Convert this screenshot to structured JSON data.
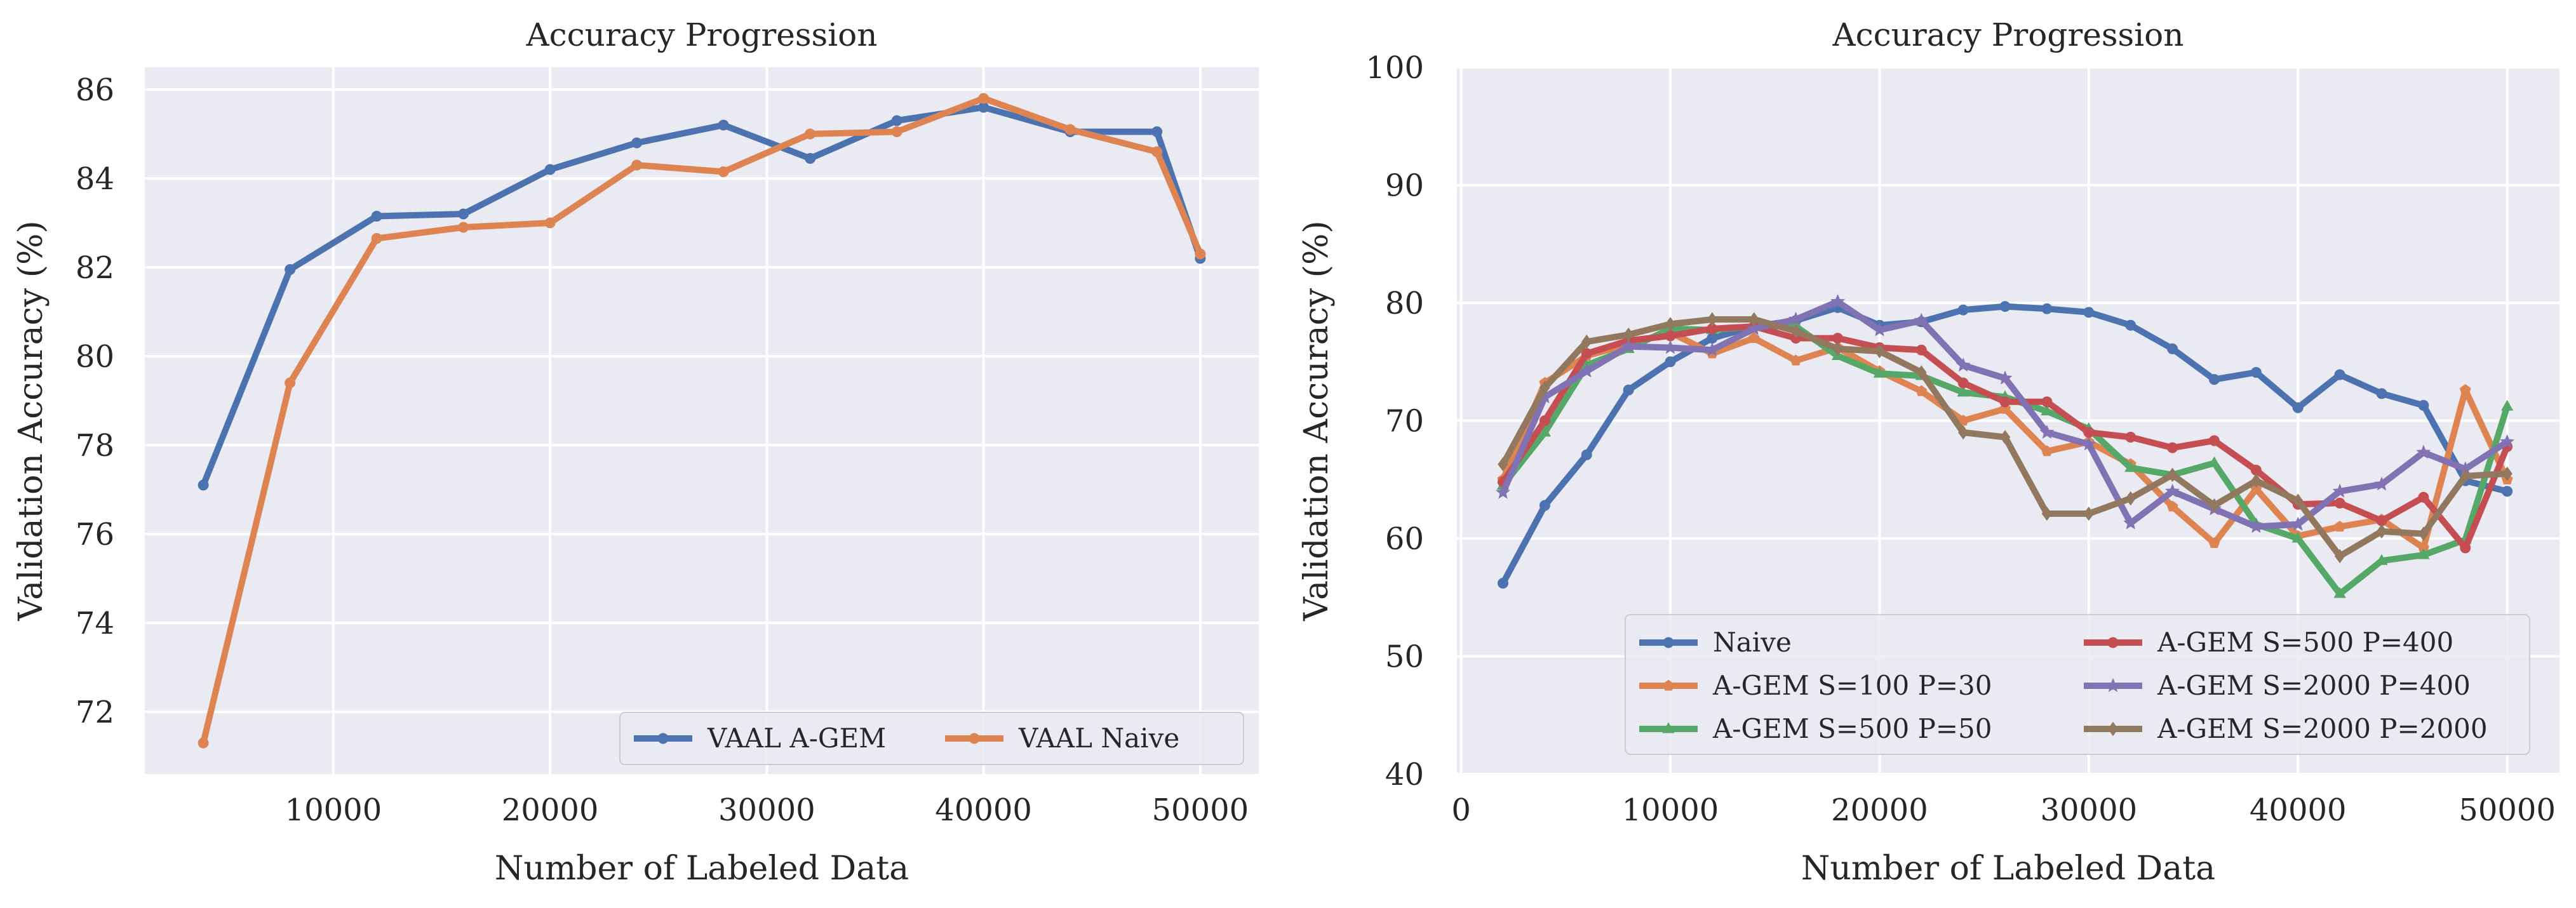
{
  "chart_data": [
    {
      "type": "line",
      "title": "Accuracy Progression",
      "xlabel": "Number of Labeled Data",
      "ylabel": "Validation Accuracy (%)",
      "xlim": [
        1300,
        52700
      ],
      "ylim": [
        70.6,
        86.5
      ],
      "xticks": [
        10000,
        20000,
        30000,
        40000,
        50000
      ],
      "yticks": [
        72,
        74,
        76,
        78,
        80,
        82,
        84,
        86
      ],
      "grid": true,
      "legend_position": "lower right",
      "legend_columns": 2,
      "x": [
        4000,
        8000,
        12000,
        16000,
        20000,
        24000,
        28000,
        32000,
        36000,
        40000,
        44000,
        48000,
        50000
      ],
      "series": [
        {
          "name": "VAAL A-GEM",
          "color": "#4c72b0",
          "marker": "circle",
          "values": [
            77.1,
            81.95,
            83.15,
            83.2,
            84.2,
            84.8,
            85.2,
            84.45,
            85.3,
            85.6,
            85.05,
            85.05,
            82.2
          ]
        },
        {
          "name": "VAAL Naive",
          "color": "#dd8452",
          "marker": "circle",
          "values": [
            71.3,
            79.4,
            82.65,
            82.9,
            83.0,
            84.3,
            84.15,
            85.0,
            85.05,
            85.8,
            85.1,
            84.6,
            82.3
          ]
        }
      ]
    },
    {
      "type": "line",
      "title": "Accuracy Progression",
      "xlabel": "Number of Labeled Data",
      "ylabel": "Validation Accuracy (%)",
      "xlim": [
        -200,
        52500
      ],
      "ylim": [
        40,
        100
      ],
      "xticks": [
        0,
        10000,
        20000,
        30000,
        40000,
        50000
      ],
      "yticks": [
        40,
        50,
        60,
        70,
        80,
        90,
        100
      ],
      "grid": true,
      "legend_position": "lower right",
      "legend_columns": 2,
      "x": [
        2000,
        4000,
        6000,
        8000,
        10000,
        12000,
        14000,
        16000,
        18000,
        20000,
        22000,
        24000,
        26000,
        28000,
        30000,
        32000,
        34000,
        36000,
        38000,
        40000,
        42000,
        44000,
        46000,
        48000,
        50000
      ],
      "series": [
        {
          "name": "Naive",
          "color": "#4c72b0",
          "marker": "circle",
          "values": [
            56.2,
            62.8,
            67.1,
            72.6,
            75.0,
            77.0,
            78.0,
            78.5,
            79.6,
            78.1,
            78.4,
            79.4,
            79.7,
            79.5,
            79.2,
            78.1,
            76.1,
            73.5,
            74.1,
            71.1,
            73.9,
            72.3,
            71.3,
            64.9,
            64.0
          ]
        },
        {
          "name": "A-GEM S=100 P=30",
          "color": "#dd8452",
          "marker": "pentagon",
          "values": [
            65.0,
            73.2,
            75.5,
            76.5,
            77.5,
            75.7,
            77.0,
            75.1,
            76.2,
            74.2,
            72.5,
            70.0,
            71.0,
            67.4,
            68.2,
            66.3,
            62.7,
            59.6,
            64.2,
            60.2,
            61.0,
            61.6,
            59.2,
            72.6,
            65.0
          ]
        },
        {
          "name": "A-GEM S=500 P=50",
          "color": "#55a868",
          "marker": "triangle",
          "values": [
            64.5,
            69.0,
            74.7,
            76.1,
            77.8,
            77.7,
            78.0,
            78.0,
            75.5,
            74.0,
            73.8,
            72.4,
            72.0,
            70.8,
            69.3,
            66.0,
            65.4,
            66.4,
            61.2,
            60.0,
            55.3,
            58.1,
            58.6,
            59.9,
            71.2
          ]
        },
        {
          "name": "A-GEM S=500 P=400",
          "color": "#c44e52",
          "marker": "circle",
          "values": [
            64.8,
            70.0,
            75.7,
            76.8,
            77.2,
            77.8,
            78.0,
            77.0,
            77.0,
            76.2,
            76.0,
            73.2,
            71.6,
            71.6,
            69.0,
            68.6,
            67.7,
            68.3,
            65.8,
            62.9,
            63.0,
            61.5,
            63.5,
            59.2,
            67.8
          ]
        },
        {
          "name": "A-GEM S=2000 P=400",
          "color": "#8172b3",
          "marker": "star",
          "values": [
            63.9,
            72.0,
            74.2,
            76.3,
            76.2,
            76.0,
            77.8,
            78.6,
            80.1,
            77.7,
            78.5,
            74.7,
            73.6,
            69.0,
            68.0,
            61.3,
            64.0,
            62.5,
            61.0,
            61.2,
            64.0,
            64.6,
            67.3,
            65.9,
            68.2
          ]
        },
        {
          "name": "A-GEM S=2000 P=2000",
          "color": "#937860",
          "marker": "diamond",
          "values": [
            66.3,
            72.8,
            76.7,
            77.3,
            78.2,
            78.6,
            78.6,
            77.6,
            76.1,
            75.9,
            74.1,
            69.0,
            68.6,
            62.1,
            62.1,
            63.4,
            65.4,
            62.8,
            64.9,
            63.2,
            58.5,
            60.6,
            60.4,
            65.3,
            65.5
          ]
        }
      ]
    }
  ]
}
